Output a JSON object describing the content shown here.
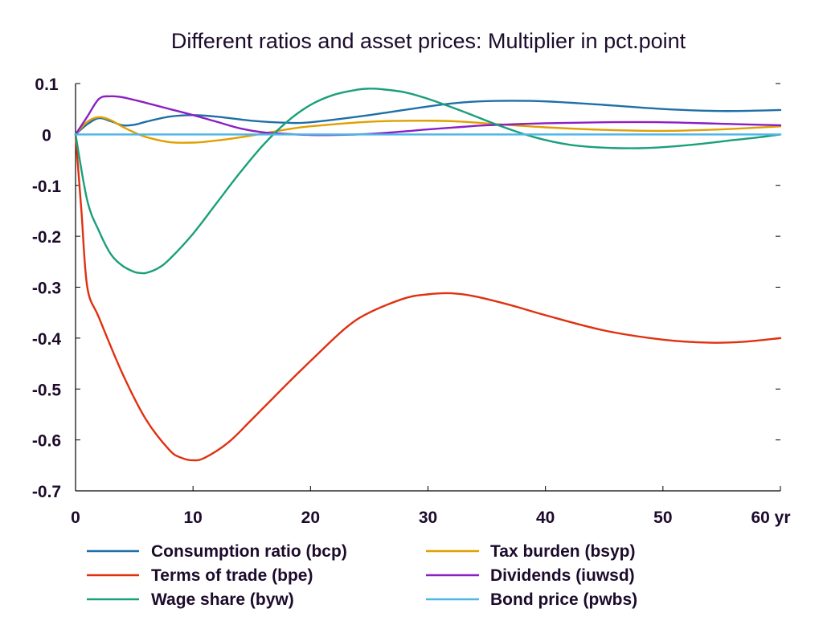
{
  "chart_data": {
    "type": "line",
    "title": "Different ratios and asset prices: Multiplier in pct.point",
    "xlabel": "",
    "ylabel": "",
    "xlim": [
      0,
      60
    ],
    "ylim": [
      -0.7,
      0.1
    ],
    "x_ticks": [
      {
        "value": 0,
        "label": "0"
      },
      {
        "value": 10,
        "label": "10"
      },
      {
        "value": 20,
        "label": "20"
      },
      {
        "value": 30,
        "label": "30"
      },
      {
        "value": 40,
        "label": "40"
      },
      {
        "value": 50,
        "label": "50"
      },
      {
        "value": 60,
        "label": "60 yr"
      }
    ],
    "y_ticks": [
      {
        "value": 0.1,
        "label": "0.1"
      },
      {
        "value": 0,
        "label": "0"
      },
      {
        "value": -0.1,
        "label": "-0.1"
      },
      {
        "value": -0.2,
        "label": "-0.2"
      },
      {
        "value": -0.3,
        "label": "-0.3"
      },
      {
        "value": -0.4,
        "label": "-0.4"
      },
      {
        "value": -0.5,
        "label": "-0.5"
      },
      {
        "value": -0.6,
        "label": "-0.6"
      },
      {
        "value": -0.7,
        "label": "-0.7"
      }
    ],
    "grid": false,
    "legend_position": "bottom",
    "series": [
      {
        "name": "Consumption ratio (bcp)",
        "color": "#1f6fa7",
        "points": [
          [
            0,
            0
          ],
          [
            1,
            0.02
          ],
          [
            2,
            0.032
          ],
          [
            3,
            0.026
          ],
          [
            4,
            0.018
          ],
          [
            5,
            0.019
          ],
          [
            6,
            0.025
          ],
          [
            8,
            0.035
          ],
          [
            10,
            0.038
          ],
          [
            12,
            0.035
          ],
          [
            15,
            0.027
          ],
          [
            18,
            0.023
          ],
          [
            20,
            0.024
          ],
          [
            25,
            0.038
          ],
          [
            30,
            0.055
          ],
          [
            33,
            0.063
          ],
          [
            36,
            0.066
          ],
          [
            40,
            0.065
          ],
          [
            45,
            0.058
          ],
          [
            50,
            0.05
          ],
          [
            55,
            0.046
          ],
          [
            60,
            0.048
          ]
        ]
      },
      {
        "name": "Tax burden (bsyp)",
        "color": "#e0a000",
        "points": [
          [
            0,
            0
          ],
          [
            1,
            0.025
          ],
          [
            2,
            0.034
          ],
          [
            3,
            0.028
          ],
          [
            4,
            0.015
          ],
          [
            5,
            0.004
          ],
          [
            6,
            -0.005
          ],
          [
            8,
            -0.015
          ],
          [
            10,
            -0.016
          ],
          [
            12,
            -0.012
          ],
          [
            15,
            -0.002
          ],
          [
            18,
            0.01
          ],
          [
            20,
            0.016
          ],
          [
            25,
            0.025
          ],
          [
            30,
            0.027
          ],
          [
            33,
            0.025
          ],
          [
            36,
            0.02
          ],
          [
            40,
            0.014
          ],
          [
            45,
            0.009
          ],
          [
            50,
            0.007
          ],
          [
            55,
            0.01
          ],
          [
            60,
            0.016
          ]
        ]
      },
      {
        "name": "Terms of trade (bpe)",
        "color": "#e03010",
        "points": [
          [
            0,
            0
          ],
          [
            0.5,
            -0.15
          ],
          [
            1,
            -0.3
          ],
          [
            2,
            -0.36
          ],
          [
            4,
            -0.47
          ],
          [
            6,
            -0.56
          ],
          [
            8,
            -0.62
          ],
          [
            9,
            -0.635
          ],
          [
            10,
            -0.64
          ],
          [
            11,
            -0.635
          ],
          [
            13,
            -0.605
          ],
          [
            15,
            -0.56
          ],
          [
            18,
            -0.49
          ],
          [
            20,
            -0.445
          ],
          [
            23,
            -0.38
          ],
          [
            25,
            -0.35
          ],
          [
            28,
            -0.322
          ],
          [
            30,
            -0.314
          ],
          [
            32,
            -0.312
          ],
          [
            34,
            -0.318
          ],
          [
            37,
            -0.335
          ],
          [
            40,
            -0.355
          ],
          [
            45,
            -0.385
          ],
          [
            50,
            -0.403
          ],
          [
            54,
            -0.409
          ],
          [
            57,
            -0.407
          ],
          [
            60,
            -0.4
          ]
        ]
      },
      {
        "name": "Dividends (iuwsd)",
        "color": "#8a1fc4",
        "points": [
          [
            0,
            0
          ],
          [
            1,
            0.035
          ],
          [
            2,
            0.07
          ],
          [
            3,
            0.075
          ],
          [
            4,
            0.073
          ],
          [
            6,
            0.062
          ],
          [
            8,
            0.05
          ],
          [
            10,
            0.038
          ],
          [
            12,
            0.025
          ],
          [
            14,
            0.012
          ],
          [
            16,
            0.004
          ],
          [
            18,
            0.001
          ],
          [
            20,
            -0.001
          ],
          [
            22,
            -0.001
          ],
          [
            25,
            0.001
          ],
          [
            28,
            0.006
          ],
          [
            30,
            0.01
          ],
          [
            33,
            0.015
          ],
          [
            35,
            0.018
          ],
          [
            40,
            0.022
          ],
          [
            45,
            0.024
          ],
          [
            50,
            0.024
          ],
          [
            55,
            0.021
          ],
          [
            60,
            0.018
          ]
        ]
      },
      {
        "name": "Wage share (byw)",
        "color": "#1a9f7a",
        "points": [
          [
            0,
            0
          ],
          [
            1,
            -0.13
          ],
          [
            2,
            -0.19
          ],
          [
            3,
            -0.235
          ],
          [
            4,
            -0.258
          ],
          [
            5,
            -0.27
          ],
          [
            5.5,
            -0.272
          ],
          [
            6,
            -0.272
          ],
          [
            7,
            -0.263
          ],
          [
            8,
            -0.245
          ],
          [
            10,
            -0.195
          ],
          [
            12,
            -0.135
          ],
          [
            14,
            -0.075
          ],
          [
            16,
            -0.02
          ],
          [
            18,
            0.025
          ],
          [
            20,
            0.058
          ],
          [
            22,
            0.078
          ],
          [
            24,
            0.088
          ],
          [
            25,
            0.09
          ],
          [
            26,
            0.089
          ],
          [
            28,
            0.083
          ],
          [
            30,
            0.07
          ],
          [
            33,
            0.045
          ],
          [
            36,
            0.018
          ],
          [
            39,
            -0.005
          ],
          [
            42,
            -0.02
          ],
          [
            45,
            -0.026
          ],
          [
            48,
            -0.027
          ],
          [
            50,
            -0.025
          ],
          [
            53,
            -0.019
          ],
          [
            56,
            -0.011
          ],
          [
            58,
            -0.006
          ],
          [
            60,
            0
          ]
        ]
      },
      {
        "name": "Bond price (pwbs)",
        "color": "#4fb6e6",
        "points": [
          [
            0,
            0
          ],
          [
            60,
            0
          ]
        ]
      }
    ],
    "zero_line": {
      "value": 0,
      "color": "#1f6fa7"
    }
  },
  "legend": {
    "items": [
      {
        "label": "Consumption ratio (bcp)",
        "color": "#1f6fa7"
      },
      {
        "label": "Tax burden (bsyp)",
        "color": "#e0a000"
      },
      {
        "label": "Terms of trade (bpe)",
        "color": "#e03010"
      },
      {
        "label": "Dividends (iuwsd)",
        "color": "#8a1fc4"
      },
      {
        "label": "Wage share (byw)",
        "color": "#1a9f7a"
      },
      {
        "label": "Bond price (pwbs)",
        "color": "#4fb6e6"
      }
    ]
  }
}
